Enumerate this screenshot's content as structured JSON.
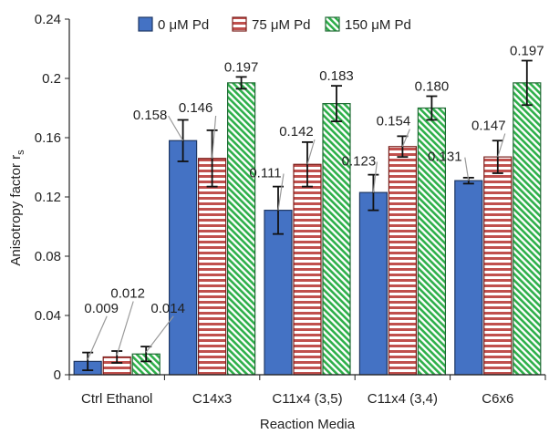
{
  "chart_data": {
    "type": "bar",
    "title": "",
    "xlabel": "Reaction Media",
    "ylabel": "Anisotropy factor r",
    "ylabel_subscript": "s",
    "ylim": [
      0,
      0.24
    ],
    "yticks": [
      "0",
      "0.04",
      "0.08",
      "0.12",
      "0.16",
      "0.2",
      "0.24"
    ],
    "ytick_values": [
      0,
      0.04,
      0.08,
      0.12,
      0.16,
      0.2,
      0.24
    ],
    "grid": false,
    "legend_position": "top",
    "categories": [
      "Ctrl Ethanol",
      "C14x3",
      "C11x4 (3,5)",
      "C11x4 (3,4)",
      "C6x6"
    ],
    "series": [
      {
        "name": "0 μM Pd",
        "color": "#4472C4",
        "pattern": "solid",
        "values": [
          0.009,
          0.158,
          0.111,
          0.123,
          0.131
        ],
        "labels": [
          "0.009",
          "0.158",
          "0.111",
          "0.123",
          "0.131"
        ],
        "errors": [
          0.006,
          0.014,
          0.016,
          0.012,
          0.002
        ]
      },
      {
        "name": "75 μM Pd",
        "color": "#C0504D",
        "pattern": "horizontal-stripes",
        "values": [
          0.012,
          0.146,
          0.142,
          0.154,
          0.147
        ],
        "labels": [
          "0.012",
          "0.146",
          "0.142",
          "0.154",
          "0.147"
        ],
        "errors": [
          0.004,
          0.019,
          0.015,
          0.007,
          0.011
        ]
      },
      {
        "name": "150 μM Pd",
        "color": "#2EAF4A",
        "pattern": "diagonal-stripes",
        "values": [
          0.014,
          0.197,
          0.183,
          0.18,
          0.197
        ],
        "labels": [
          "0.014",
          "0.197",
          "0.183",
          "0.180",
          "0.197"
        ],
        "errors": [
          0.005,
          0.004,
          0.012,
          0.008,
          0.015
        ]
      }
    ]
  }
}
